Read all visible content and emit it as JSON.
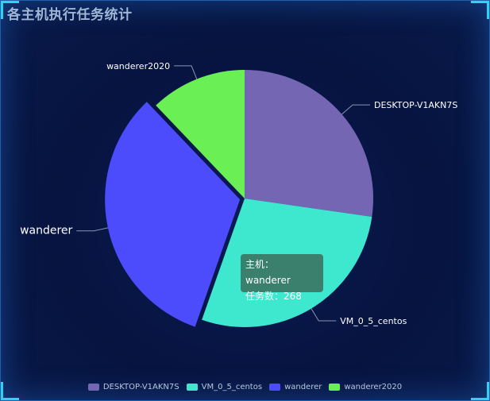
{
  "title": "各主机执行任务统计",
  "chart_data": {
    "type": "pie",
    "title": "各主机执行任务统计",
    "slices": [
      {
        "name": "DESKTOP-V1AKN7S",
        "value": 225,
        "color": "#7566b4"
      },
      {
        "name": "VM_0_5_centos",
        "value": 232,
        "color": "#3de8cf"
      },
      {
        "name": "wanderer",
        "value": 268,
        "color": "#4c4cfc"
      },
      {
        "name": "wanderer2020",
        "value": 100,
        "color": "#6aef55"
      }
    ],
    "legend_position": "bottom-center",
    "highlighted": "wanderer"
  },
  "tooltip": {
    "line1": "主机：wanderer",
    "line2": "任务数：268"
  }
}
